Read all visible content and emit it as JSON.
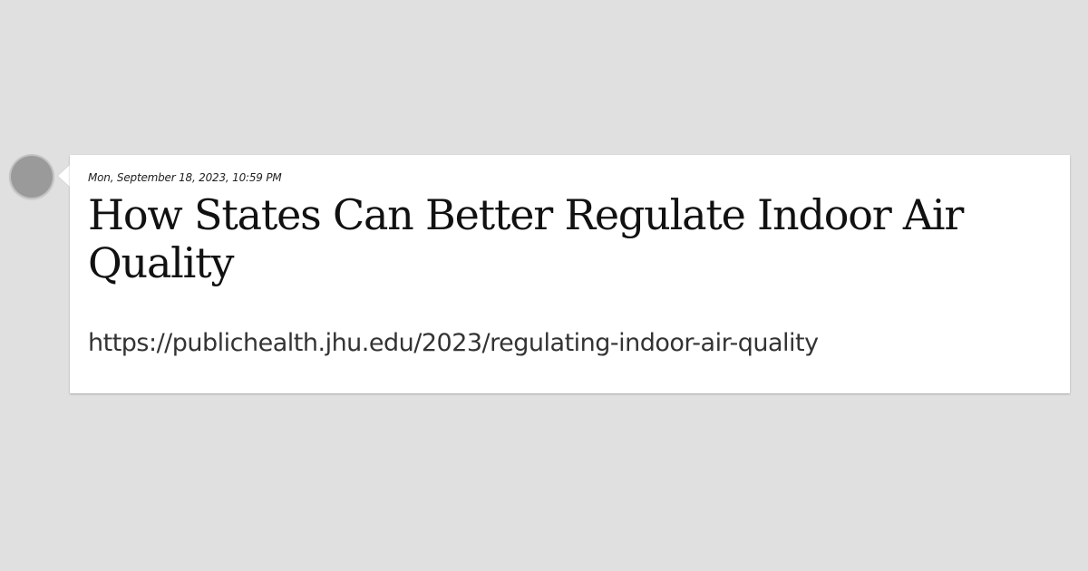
{
  "post": {
    "timestamp": "Mon, September 18, 2023, 10:59 PM",
    "title": "How States Can Better Regulate Indoor Air Quality",
    "url": "https://publichealth.jhu.edu/2023/regulating-indoor-air-quality"
  }
}
